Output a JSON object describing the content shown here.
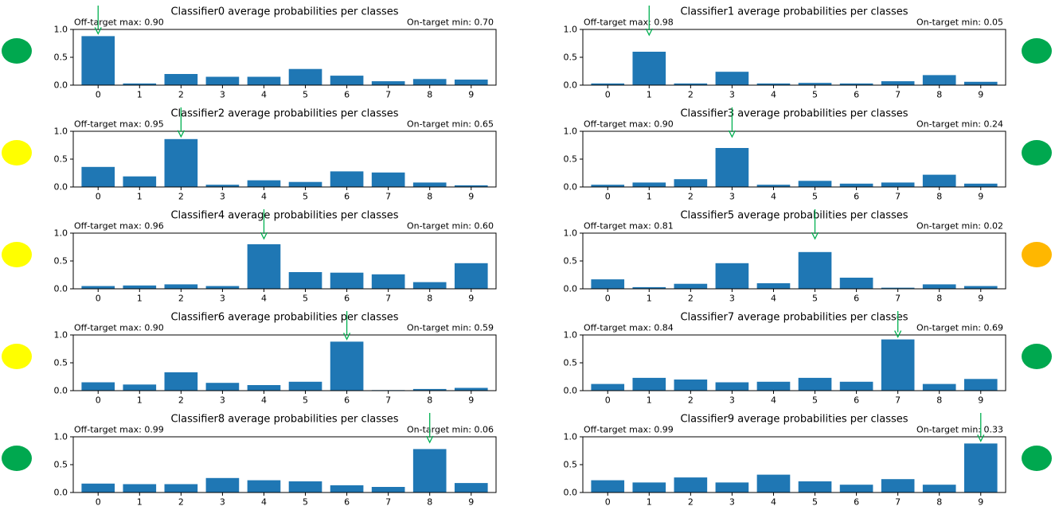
{
  "figure": {
    "x_categories": [
      "0",
      "1",
      "2",
      "3",
      "4",
      "5",
      "6",
      "7",
      "8",
      "9"
    ],
    "y_ticks": [
      "0.0",
      "0.5",
      "1.0"
    ],
    "bar_color": "#1f77b4",
    "arrow_color": "#00b050",
    "status_colors": {
      "green": "#00a84f",
      "yellow": "#ffff00",
      "orange": "#ffb700"
    }
  },
  "chart_data": [
    {
      "type": "bar",
      "title": "Classifier0 average probabilities per classes",
      "off_target_label": "Off-target max: 0.90",
      "on_target_label": "On-target min: 0.70",
      "categories": [
        "0",
        "1",
        "2",
        "3",
        "4",
        "5",
        "6",
        "7",
        "8",
        "9"
      ],
      "values": [
        0.88,
        0.03,
        0.2,
        0.15,
        0.15,
        0.29,
        0.17,
        0.07,
        0.11,
        0.1
      ],
      "ylim": [
        0,
        1.0
      ],
      "target": 0,
      "status": "green"
    },
    {
      "type": "bar",
      "title": "Classifier1 average probabilities per classes",
      "off_target_label": "Off-target max: 0.98",
      "on_target_label": "On-target min: 0.05",
      "categories": [
        "0",
        "1",
        "2",
        "3",
        "4",
        "5",
        "6",
        "7",
        "8",
        "9"
      ],
      "values": [
        0.03,
        0.6,
        0.03,
        0.24,
        0.03,
        0.04,
        0.03,
        0.07,
        0.18,
        0.06
      ],
      "ylim": [
        0,
        1.0
      ],
      "target": 1,
      "status": "green"
    },
    {
      "type": "bar",
      "title": "Classifier2 average probabilities per classes",
      "off_target_label": "Off-target max: 0.95",
      "on_target_label": "On-target min: 0.65",
      "categories": [
        "0",
        "1",
        "2",
        "3",
        "4",
        "5",
        "6",
        "7",
        "8",
        "9"
      ],
      "values": [
        0.36,
        0.19,
        0.86,
        0.04,
        0.12,
        0.09,
        0.28,
        0.26,
        0.08,
        0.03
      ],
      "ylim": [
        0,
        1.0
      ],
      "target": 2,
      "status": "yellow"
    },
    {
      "type": "bar",
      "title": "Classifier3 average probabilities per classes",
      "off_target_label": "Off-target max: 0.90",
      "on_target_label": "On-target min: 0.24",
      "categories": [
        "0",
        "1",
        "2",
        "3",
        "4",
        "5",
        "6",
        "7",
        "8",
        "9"
      ],
      "values": [
        0.04,
        0.08,
        0.14,
        0.7,
        0.04,
        0.11,
        0.06,
        0.08,
        0.22,
        0.06
      ],
      "ylim": [
        0,
        1.0
      ],
      "target": 3,
      "status": "green"
    },
    {
      "type": "bar",
      "title": "Classifier4 average probabilities per classes",
      "off_target_label": "Off-target max: 0.96",
      "on_target_label": "On-target min: 0.60",
      "categories": [
        "0",
        "1",
        "2",
        "3",
        "4",
        "5",
        "6",
        "7",
        "8",
        "9"
      ],
      "values": [
        0.05,
        0.06,
        0.08,
        0.05,
        0.8,
        0.3,
        0.29,
        0.26,
        0.12,
        0.46
      ],
      "ylim": [
        0,
        1.0
      ],
      "target": 4,
      "status": "yellow"
    },
    {
      "type": "bar",
      "title": "Classifier5 average probabilities per classes",
      "off_target_label": "Off-target max: 0.81",
      "on_target_label": "On-target min: 0.02",
      "categories": [
        "0",
        "1",
        "2",
        "3",
        "4",
        "5",
        "6",
        "7",
        "8",
        "9"
      ],
      "values": [
        0.17,
        0.03,
        0.09,
        0.46,
        0.1,
        0.66,
        0.2,
        0.02,
        0.08,
        0.05
      ],
      "ylim": [
        0,
        1.0
      ],
      "target": 5,
      "status": "orange"
    },
    {
      "type": "bar",
      "title": "Classifier6 average probabilities per classes",
      "off_target_label": "Off-target max: 0.90",
      "on_target_label": "On-target min: 0.59",
      "categories": [
        "0",
        "1",
        "2",
        "3",
        "4",
        "5",
        "6",
        "7",
        "8",
        "9"
      ],
      "values": [
        0.15,
        0.11,
        0.33,
        0.14,
        0.1,
        0.16,
        0.88,
        0.01,
        0.03,
        0.05
      ],
      "ylim": [
        0,
        1.0
      ],
      "target": 6,
      "status": "yellow"
    },
    {
      "type": "bar",
      "title": "Classifier7 average probabilities per classes",
      "off_target_label": "Off-target max: 0.84",
      "on_target_label": "On-target min: 0.69",
      "categories": [
        "0",
        "1",
        "2",
        "3",
        "4",
        "5",
        "6",
        "7",
        "8",
        "9"
      ],
      "values": [
        0.12,
        0.23,
        0.2,
        0.15,
        0.16,
        0.23,
        0.16,
        0.92,
        0.12,
        0.21
      ],
      "ylim": [
        0,
        1.0
      ],
      "target": 7,
      "status": "green"
    },
    {
      "type": "bar",
      "title": "Classifier8 average probabilities per classes",
      "off_target_label": "Off-target max: 0.99",
      "on_target_label": "On-target min: 0.06",
      "categories": [
        "0",
        "1",
        "2",
        "3",
        "4",
        "5",
        "6",
        "7",
        "8",
        "9"
      ],
      "values": [
        0.16,
        0.15,
        0.15,
        0.26,
        0.22,
        0.2,
        0.13,
        0.1,
        0.78,
        0.17
      ],
      "ylim": [
        0,
        1.0
      ],
      "target": 8,
      "status": "green"
    },
    {
      "type": "bar",
      "title": "Classifier9 average probabilities per classes",
      "off_target_label": "Off-target max: 0.99",
      "on_target_label": "On-target min: 0.33",
      "categories": [
        "0",
        "1",
        "2",
        "3",
        "4",
        "5",
        "6",
        "7",
        "8",
        "9"
      ],
      "values": [
        0.22,
        0.18,
        0.27,
        0.18,
        0.32,
        0.2,
        0.14,
        0.24,
        0.14,
        0.88
      ],
      "ylim": [
        0,
        1.0
      ],
      "target": 9,
      "status": "green"
    }
  ]
}
